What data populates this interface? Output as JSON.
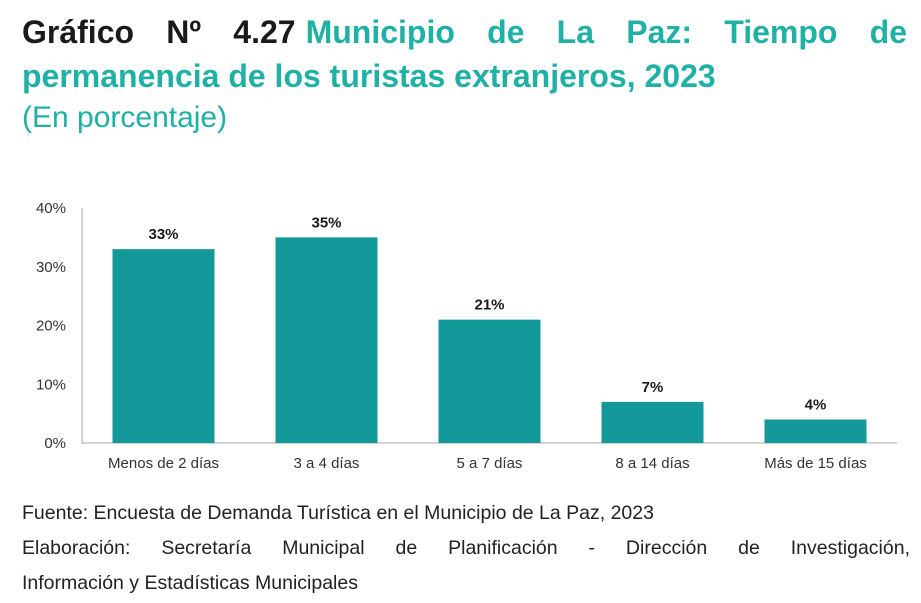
{
  "title": {
    "number": "Gráfico Nº 4.27",
    "text": "Municipio de La Paz: Tiempo de permanencia de los turistas extranjeros, 2023",
    "subtitle": "(En porcentaje)"
  },
  "colors": {
    "accent": "#1fb0a6",
    "bar": "#14999a",
    "axis": "#aaaaaa"
  },
  "chart_data": {
    "type": "bar",
    "categories": [
      "Menos de 2 días",
      "3 a 4 días",
      "5 a 7 días",
      "8 a 14 días",
      "Más de 15 días"
    ],
    "values": [
      33,
      35,
      21,
      7,
      4
    ],
    "data_labels": [
      "33%",
      "35%",
      "21%",
      "7%",
      "4%"
    ],
    "yticks": [
      0,
      10,
      20,
      30,
      40
    ],
    "ytick_labels": [
      "0%",
      "10%",
      "20%",
      "30%",
      "40%"
    ],
    "ylim": [
      0,
      40
    ],
    "grid": false
  },
  "notes": {
    "source": "Fuente: Encuesta de Demanda Turística en el Municipio de La Paz, 2023",
    "elaboration_line1": "Elaboración: Secretaría Municipal de Planificación - Dirección de Investigación,",
    "elaboration_line2": "Información y Estadísticas Municipales"
  }
}
